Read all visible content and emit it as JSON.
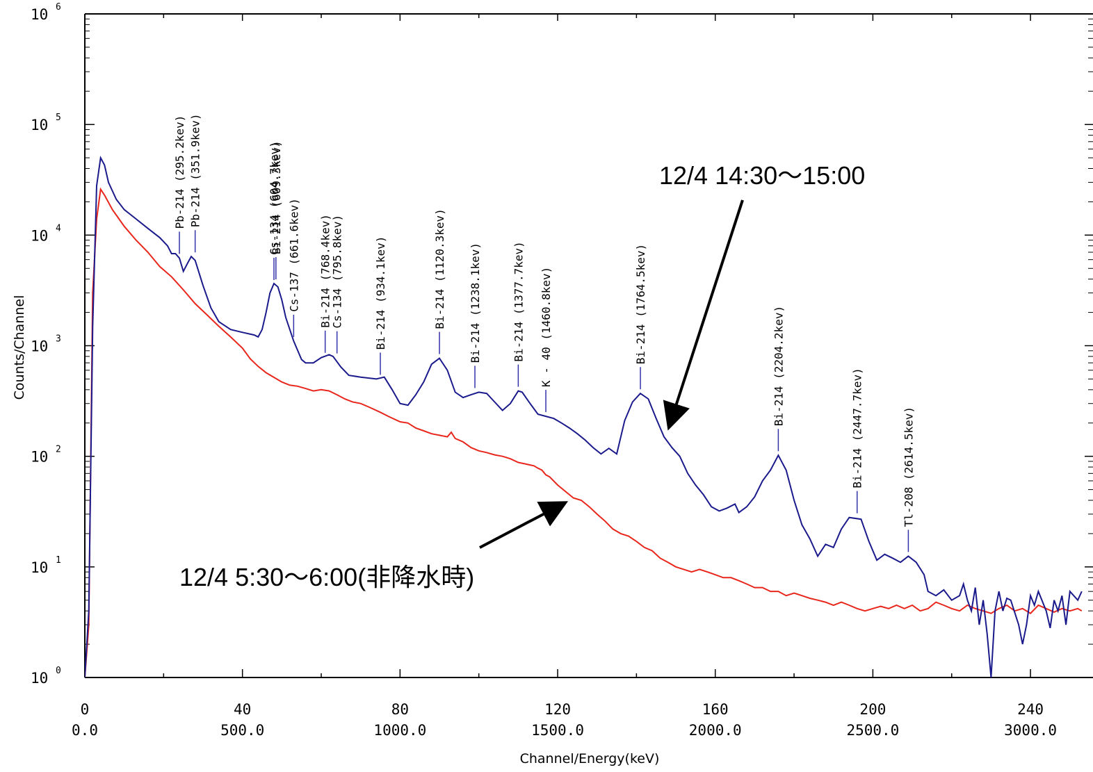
{
  "chart_data": {
    "type": "line",
    "title": "",
    "xlabel": "Channel/Energy(keV)",
    "ylabel": "Counts/Channel",
    "y_scale": "log",
    "ylim": [
      1,
      1000000
    ],
    "xlim_channel": [
      0,
      253
    ],
    "y_ticks": [
      {
        "value": 1,
        "base": "10",
        "exp": "0"
      },
      {
        "value": 10,
        "base": "10",
        "exp": "1"
      },
      {
        "value": 100,
        "base": "10",
        "exp": "2"
      },
      {
        "value": 1000,
        "base": "10",
        "exp": "3"
      },
      {
        "value": 10000,
        "base": "10",
        "exp": "4"
      },
      {
        "value": 100000,
        "base": "10",
        "exp": "5"
      },
      {
        "value": 1000000,
        "base": "10",
        "exp": "6"
      }
    ],
    "x_ticks": [
      {
        "channel": 0,
        "channel_label": "0",
        "energy_label": "0.0"
      },
      {
        "channel": 40,
        "channel_label": "40",
        "energy_label": "500.0"
      },
      {
        "channel": 80,
        "channel_label": "80",
        "energy_label": "1000.0"
      },
      {
        "channel": 120,
        "channel_label": "120",
        "energy_label": "1500.0"
      },
      {
        "channel": 160,
        "channel_label": "160",
        "energy_label": "2000.0"
      },
      {
        "channel": 200,
        "channel_label": "200",
        "energy_label": "2500.0"
      },
      {
        "channel": 240,
        "channel_label": "240",
        "energy_label": "3000.0"
      }
    ],
    "series": [
      {
        "name": "12/4  14:30〜15:00",
        "color": "#1a1a8c",
        "points": [
          [
            0,
            1
          ],
          [
            1,
            4
          ],
          [
            2,
            1500
          ],
          [
            3,
            28000
          ],
          [
            4,
            50000
          ],
          [
            5,
            43000
          ],
          [
            6,
            30000
          ],
          [
            8,
            21000
          ],
          [
            10,
            17000
          ],
          [
            13,
            14000
          ],
          [
            16,
            11500
          ],
          [
            19,
            9500
          ],
          [
            21,
            8000
          ],
          [
            22,
            6800
          ],
          [
            23,
            6800
          ],
          [
            24,
            6200
          ],
          [
            25,
            4700
          ],
          [
            26,
            5500
          ],
          [
            27,
            6400
          ],
          [
            28,
            5900
          ],
          [
            30,
            3500
          ],
          [
            32,
            2200
          ],
          [
            34,
            1650
          ],
          [
            37,
            1400
          ],
          [
            40,
            1320
          ],
          [
            43,
            1250
          ],
          [
            44,
            1200
          ],
          [
            45,
            1400
          ],
          [
            46,
            2000
          ],
          [
            47,
            3000
          ],
          [
            48,
            3650
          ],
          [
            49,
            3400
          ],
          [
            50,
            2600
          ],
          [
            51,
            1800
          ],
          [
            53,
            1100
          ],
          [
            55,
            750
          ],
          [
            56,
            700
          ],
          [
            58,
            700
          ],
          [
            60,
            780
          ],
          [
            62,
            830
          ],
          [
            63,
            800
          ],
          [
            65,
            640
          ],
          [
            67,
            540
          ],
          [
            70,
            520
          ],
          [
            74,
            500
          ],
          [
            76,
            520
          ],
          [
            78,
            400
          ],
          [
            80,
            300
          ],
          [
            82,
            290
          ],
          [
            84,
            360
          ],
          [
            86,
            470
          ],
          [
            88,
            680
          ],
          [
            90,
            770
          ],
          [
            92,
            600
          ],
          [
            94,
            380
          ],
          [
            96,
            340
          ],
          [
            98,
            360
          ],
          [
            100,
            380
          ],
          [
            102,
            370
          ],
          [
            104,
            310
          ],
          [
            106,
            260
          ],
          [
            108,
            300
          ],
          [
            110,
            390
          ],
          [
            111,
            380
          ],
          [
            113,
            300
          ],
          [
            115,
            240
          ],
          [
            117,
            230
          ],
          [
            119,
            220
          ],
          [
            121,
            200
          ],
          [
            123,
            180
          ],
          [
            125,
            160
          ],
          [
            127,
            140
          ],
          [
            129,
            120
          ],
          [
            131,
            105
          ],
          [
            133,
            118
          ],
          [
            135,
            105
          ],
          [
            137,
            210
          ],
          [
            139,
            310
          ],
          [
            141,
            370
          ],
          [
            143,
            330
          ],
          [
            145,
            220
          ],
          [
            147,
            150
          ],
          [
            149,
            120
          ],
          [
            151,
            100
          ],
          [
            153,
            70
          ],
          [
            155,
            55
          ],
          [
            157,
            45
          ],
          [
            159,
            35
          ],
          [
            161,
            32
          ],
          [
            163,
            34
          ],
          [
            165,
            37
          ],
          [
            166,
            31
          ],
          [
            168,
            35
          ],
          [
            170,
            43
          ],
          [
            172,
            60
          ],
          [
            174,
            75
          ],
          [
            176,
            102
          ],
          [
            178,
            75
          ],
          [
            180,
            40
          ],
          [
            182,
            24
          ],
          [
            184,
            18
          ],
          [
            186,
            12.5
          ],
          [
            188,
            16
          ],
          [
            190,
            15
          ],
          [
            192,
            22
          ],
          [
            194,
            28
          ],
          [
            197,
            27
          ],
          [
            199,
            17
          ],
          [
            201,
            11.5
          ],
          [
            203,
            13
          ],
          [
            205,
            12
          ],
          [
            207,
            11
          ],
          [
            209,
            12.5
          ],
          [
            211,
            11
          ],
          [
            213,
            8.5
          ],
          [
            214,
            6
          ],
          [
            216,
            5.5
          ],
          [
            218,
            6.2
          ],
          [
            220,
            5
          ],
          [
            222,
            5.5
          ],
          [
            223,
            7
          ],
          [
            224,
            5
          ],
          [
            225,
            4
          ],
          [
            226,
            6.5
          ],
          [
            227,
            3
          ],
          [
            228,
            5
          ],
          [
            229,
            2.5
          ],
          [
            230,
            1
          ],
          [
            231,
            4
          ],
          [
            232,
            6
          ],
          [
            233,
            4
          ],
          [
            234,
            5.2
          ],
          [
            235,
            5
          ],
          [
            237,
            3
          ],
          [
            238,
            2
          ],
          [
            239,
            3
          ],
          [
            240,
            5.5
          ],
          [
            241,
            4.5
          ],
          [
            242,
            6
          ],
          [
            244,
            4
          ],
          [
            245,
            2.8
          ],
          [
            246,
            5
          ],
          [
            247,
            4
          ],
          [
            248,
            5.5
          ],
          [
            249,
            3
          ],
          [
            250,
            6
          ],
          [
            252,
            5
          ],
          [
            253,
            6
          ]
        ]
      },
      {
        "name": "12/4  5:30〜6:00(非降水時)",
        "color": "#e8261c",
        "points": [
          [
            0,
            1
          ],
          [
            1,
            3
          ],
          [
            2,
            3000
          ],
          [
            3,
            14000
          ],
          [
            4,
            26000
          ],
          [
            5,
            23000
          ],
          [
            7,
            17000
          ],
          [
            10,
            12000
          ],
          [
            13,
            9000
          ],
          [
            16,
            7000
          ],
          [
            19,
            5200
          ],
          [
            22,
            4200
          ],
          [
            25,
            3200
          ],
          [
            28,
            2400
          ],
          [
            31,
            1900
          ],
          [
            34,
            1500
          ],
          [
            37,
            1200
          ],
          [
            40,
            950
          ],
          [
            42,
            760
          ],
          [
            44,
            650
          ],
          [
            46,
            570
          ],
          [
            50,
            470
          ],
          [
            52,
            440
          ],
          [
            54,
            430
          ],
          [
            56,
            410
          ],
          [
            58,
            390
          ],
          [
            60,
            400
          ],
          [
            62,
            390
          ],
          [
            64,
            360
          ],
          [
            66,
            330
          ],
          [
            68,
            310
          ],
          [
            70,
            300
          ],
          [
            72,
            280
          ],
          [
            75,
            250
          ],
          [
            77,
            230
          ],
          [
            80,
            205
          ],
          [
            82,
            200
          ],
          [
            84,
            180
          ],
          [
            86,
            170
          ],
          [
            88,
            160
          ],
          [
            90,
            155
          ],
          [
            92,
            150
          ],
          [
            93,
            165
          ],
          [
            94,
            145
          ],
          [
            96,
            135
          ],
          [
            98,
            120
          ],
          [
            100,
            112
          ],
          [
            102,
            108
          ],
          [
            104,
            103
          ],
          [
            106,
            100
          ],
          [
            108,
            95
          ],
          [
            110,
            88
          ],
          [
            112,
            85
          ],
          [
            114,
            82
          ],
          [
            115,
            78
          ],
          [
            116,
            75
          ],
          [
            117,
            68
          ],
          [
            118,
            65
          ],
          [
            120,
            55
          ],
          [
            122,
            48
          ],
          [
            124,
            42
          ],
          [
            126,
            40
          ],
          [
            128,
            35
          ],
          [
            130,
            30
          ],
          [
            132,
            26
          ],
          [
            134,
            22
          ],
          [
            136,
            20
          ],
          [
            138,
            19
          ],
          [
            140,
            17
          ],
          [
            142,
            15
          ],
          [
            144,
            14
          ],
          [
            146,
            12
          ],
          [
            148,
            11
          ],
          [
            150,
            10
          ],
          [
            152,
            9.5
          ],
          [
            154,
            9
          ],
          [
            156,
            9.5
          ],
          [
            158,
            9
          ],
          [
            160,
            8.5
          ],
          [
            162,
            8
          ],
          [
            164,
            8
          ],
          [
            166,
            7.5
          ],
          [
            168,
            7
          ],
          [
            170,
            6.5
          ],
          [
            172,
            6.5
          ],
          [
            174,
            6
          ],
          [
            176,
            6
          ],
          [
            178,
            5.5
          ],
          [
            180,
            5.8
          ],
          [
            182,
            5.5
          ],
          [
            184,
            5.2
          ],
          [
            186,
            5
          ],
          [
            188,
            4.8
          ],
          [
            190,
            4.5
          ],
          [
            192,
            4.8
          ],
          [
            194,
            4.5
          ],
          [
            196,
            4.2
          ],
          [
            198,
            4
          ],
          [
            200,
            4.2
          ],
          [
            202,
            4.4
          ],
          [
            204,
            4.2
          ],
          [
            206,
            4.5
          ],
          [
            208,
            4.2
          ],
          [
            210,
            4.5
          ],
          [
            212,
            4
          ],
          [
            214,
            4.2
          ],
          [
            216,
            4.8
          ],
          [
            218,
            4.5
          ],
          [
            220,
            4.2
          ],
          [
            222,
            4
          ],
          [
            224,
            4.5
          ],
          [
            226,
            4.2
          ],
          [
            228,
            4
          ],
          [
            230,
            3.8
          ],
          [
            232,
            4.2
          ],
          [
            234,
            4.5
          ],
          [
            236,
            4
          ],
          [
            238,
            4.2
          ],
          [
            240,
            3.8
          ],
          [
            242,
            4.5
          ],
          [
            244,
            4.2
          ],
          [
            246,
            3.9
          ],
          [
            248,
            4.2
          ],
          [
            250,
            4
          ],
          [
            252,
            4.2
          ],
          [
            253,
            4
          ]
        ]
      }
    ],
    "peaks": [
      {
        "label": "Pb-214 (295.2kev)",
        "channel": 24,
        "counts": 6200
      },
      {
        "label": "Pb-214 (351.9kev)",
        "channel": 28,
        "counts": 6400
      },
      {
        "label": "Bi-214 (609.3kev)",
        "channel": 48.5,
        "counts": 3650
      },
      {
        "label": "Cs-134 (604.7kev)",
        "channel": 48,
        "counts": 3600
      },
      {
        "label": "Cs-137 (661.6kev)",
        "channel": 53,
        "counts": 1100
      },
      {
        "label": "Bi-214 (768.4kev)",
        "channel": 61,
        "counts": 790
      },
      {
        "label": "Cs-134  (795.8kev)",
        "channel": 64,
        "counts": 780
      },
      {
        "label": "Bi-214 (934.1kev)",
        "channel": 75,
        "counts": 500
      },
      {
        "label": "Bi-214 (1120.3kev)",
        "channel": 90,
        "counts": 770
      },
      {
        "label": "Bi-214 (1238.1kev)",
        "channel": 99,
        "counts": 380
      },
      {
        "label": "Bi-214 (1377.7kev)",
        "channel": 110,
        "counts": 390
      },
      {
        "label": "K - 40 (1460.8kev)",
        "channel": 117,
        "counts": 230
      },
      {
        "label": "Bi-214 (1764.5kev)",
        "channel": 141,
        "counts": 370
      },
      {
        "label": "Bi-214 (2204.2kev)",
        "channel": 176,
        "counts": 102
      },
      {
        "label": "Bi-214 (2447.7kev)",
        "channel": 196,
        "counts": 28
      },
      {
        "label": "Tl-208    (2614.5kev)",
        "channel": 209,
        "counts": 12.5
      }
    ],
    "annotations": [
      {
        "text": "12/4  14:30〜15:00",
        "series": 0
      },
      {
        "text": "12/4  5:30〜6:00(非降水時)",
        "series": 1
      }
    ]
  }
}
